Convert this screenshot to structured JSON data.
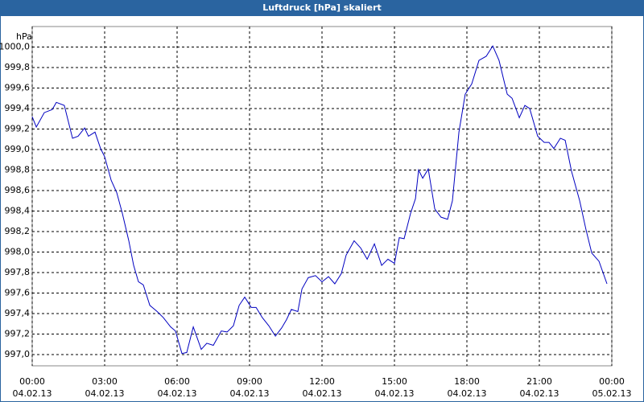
{
  "chart_data": {
    "type": "line",
    "title": "Luftdruck [hPa] skaliert",
    "ylabel": "hPa",
    "x": [
      0,
      0.17,
      0.5,
      0.83,
      1,
      1.33,
      1.67,
      1.9,
      2.17,
      2.33,
      2.6,
      2.83,
      3,
      3.27,
      3.5,
      3.73,
      4,
      4.2,
      4.4,
      4.6,
      4.87,
      5.17,
      5.43,
      5.73,
      5.93,
      6.2,
      6.4,
      6.67,
      7,
      7.23,
      7.5,
      7.83,
      8.07,
      8.33,
      8.57,
      8.8,
      9.07,
      9.27,
      9.53,
      9.8,
      10.07,
      10.33,
      10.53,
      10.73,
      11,
      11.17,
      11.43,
      11.73,
      12,
      12.27,
      12.53,
      12.8,
      13,
      13.33,
      13.6,
      13.87,
      14.17,
      14.47,
      14.73,
      15,
      15.2,
      15.4,
      15.67,
      15.87,
      16,
      16.17,
      16.4,
      16.67,
      16.93,
      17.2,
      17.4,
      17.67,
      17.93,
      18.2,
      18.5,
      18.8,
      19.07,
      19.33,
      19.67,
      19.87,
      20.17,
      20.4,
      20.6,
      20.93,
      21.2,
      21.4,
      21.6,
      21.87,
      22.07,
      22.33,
      22.67,
      22.93,
      23.17,
      23.47,
      23.8
    ],
    "series": [
      {
        "name": "Luftdruck",
        "color": "#0000c0",
        "values": [
          999.32,
          999.22,
          999.36,
          999.39,
          999.46,
          999.43,
          999.11,
          999.13,
          999.21,
          999.13,
          999.17,
          999.01,
          998.93,
          998.7,
          998.58,
          998.38,
          998.11,
          997.87,
          997.71,
          997.68,
          997.48,
          997.42,
          997.36,
          997.27,
          997.23,
          997.01,
          997.02,
          997.27,
          997.05,
          997.11,
          997.09,
          997.23,
          997.22,
          997.28,
          997.48,
          997.56,
          997.46,
          997.46,
          997.36,
          997.28,
          997.18,
          997.26,
          997.34,
          997.44,
          997.42,
          997.64,
          997.75,
          997.77,
          997.71,
          997.76,
          997.69,
          997.79,
          997.97,
          998.11,
          998.04,
          997.93,
          998.08,
          997.87,
          997.93,
          997.89,
          998.14,
          998.13,
          998.38,
          998.52,
          998.8,
          998.72,
          998.81,
          998.42,
          998.34,
          998.32,
          998.5,
          999.17,
          999.54,
          999.64,
          999.87,
          999.91,
          1000.01,
          999.87,
          999.54,
          999.5,
          999.31,
          999.43,
          999.4,
          999.13,
          999.07,
          999.07,
          999.01,
          999.11,
          999.09,
          998.79,
          998.5,
          998.22,
          997.99,
          997.91,
          997.69
        ]
      }
    ],
    "xlim": [
      0,
      24
    ],
    "xticks": [
      {
        "value": 0,
        "label": "00:00",
        "date": "04.02.13"
      },
      {
        "value": 3,
        "label": "03:00",
        "date": "04.02.13"
      },
      {
        "value": 6,
        "label": "06:00",
        "date": "04.02.13"
      },
      {
        "value": 9,
        "label": "09:00",
        "date": "04.02.13"
      },
      {
        "value": 12,
        "label": "12:00",
        "date": "04.02.13"
      },
      {
        "value": 15,
        "label": "15:00",
        "date": "04.02.13"
      },
      {
        "value": 18,
        "label": "18:00",
        "date": "04.02.13"
      },
      {
        "value": 21,
        "label": "21:00",
        "date": "04.02.13"
      },
      {
        "value": 24,
        "label": "00:00",
        "date": "05.02.13"
      }
    ],
    "ylim": [
      996.89,
      1000.2
    ],
    "yticks": [
      {
        "value": 997,
        "label": "997,0"
      },
      {
        "value": 997.2,
        "label": "997,2"
      },
      {
        "value": 997.4,
        "label": "997,4"
      },
      {
        "value": 997.6,
        "label": "997,6"
      },
      {
        "value": 997.8,
        "label": "997,8"
      },
      {
        "value": 998,
        "label": "998,0"
      },
      {
        "value": 998.2,
        "label": "998,2"
      },
      {
        "value": 998.4,
        "label": "998,4"
      },
      {
        "value": 998.6,
        "label": "998,6"
      },
      {
        "value": 998.8,
        "label": "998,8"
      },
      {
        "value": 999,
        "label": "999,0"
      },
      {
        "value": 999.2,
        "label": "999,2"
      },
      {
        "value": 999.4,
        "label": "999,4"
      },
      {
        "value": 999.6,
        "label": "999,6"
      },
      {
        "value": 999.8,
        "label": "999,8"
      },
      {
        "value": 1000,
        "label": "1000,0"
      }
    ],
    "grid": true
  }
}
